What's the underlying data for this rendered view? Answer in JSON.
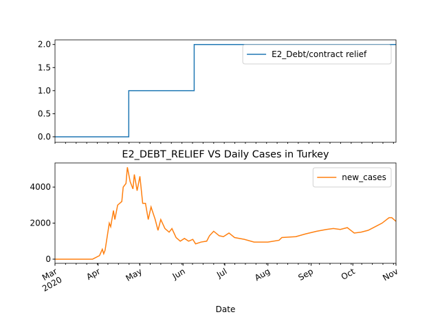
{
  "chart_data": [
    {
      "type": "line",
      "xlabel": null,
      "series": [
        {
          "name": "E2_Debt/contract relief",
          "color": "#1f77b4",
          "x": [
            0,
            53,
            53,
            100,
            100,
            245
          ],
          "values": [
            0,
            0,
            1,
            1,
            2,
            2
          ]
        }
      ],
      "xlim": [
        0,
        245
      ],
      "ylim": [
        -0.12,
        2.1
      ],
      "yticks": [
        {
          "value": 0,
          "label": "0.0"
        },
        0.5,
        {
          "value": 1,
          "label": "1.0"
        },
        1.5,
        {
          "value": 2,
          "label": "2.0"
        }
      ],
      "legend": "upper right"
    },
    {
      "type": "line",
      "title": "E2_DEBT_RELIEF VS Daily Cases in Turkey",
      "xlabel": "Date",
      "series": [
        {
          "name": "new_cases",
          "color": "#ff7f0e",
          "x": [
            0,
            27,
            32,
            34,
            35,
            36,
            37,
            39,
            40,
            42,
            43,
            45,
            48,
            49,
            51,
            52,
            54,
            56,
            57,
            59,
            61,
            63,
            65,
            67,
            69,
            72,
            74,
            76,
            79,
            82,
            84,
            87,
            90,
            93,
            96,
            99,
            101,
            105,
            109,
            111,
            114,
            118,
            121,
            125,
            129,
            136,
            143,
            153,
            161,
            163,
            173,
            180,
            188,
            195,
            200,
            205,
            210,
            215,
            220,
            225,
            230,
            235,
            240,
            242,
            245
          ],
          "values": [
            0,
            0,
            200,
            550,
            300,
            500,
            1000,
            2000,
            1800,
            2700,
            2200,
            3000,
            3200,
            4000,
            4200,
            5100,
            4300,
            3900,
            4700,
            3800,
            4600,
            3100,
            3100,
            2200,
            2900,
            2200,
            1600,
            2200,
            1700,
            1500,
            1700,
            1200,
            1000,
            1150,
            1000,
            1100,
            850,
            950,
            1000,
            1300,
            1550,
            1300,
            1250,
            1450,
            1200,
            1100,
            950,
            950,
            1050,
            1200,
            1250,
            1400,
            1550,
            1650,
            1700,
            1650,
            1750,
            1450,
            1500,
            1600,
            1800,
            2000,
            2300,
            2300,
            2100
          ]
        }
      ],
      "xlim": [
        0,
        245
      ],
      "ylim": [
        -230,
        5340
      ],
      "xticks": [
        {
          "value": 0,
          "label": "Mar 2020"
        },
        {
          "value": 31,
          "label": "Apr"
        },
        {
          "value": 61,
          "label": "May"
        },
        {
          "value": 92,
          "label": "Jun"
        },
        {
          "value": 122,
          "label": "Jul"
        },
        {
          "value": 153,
          "label": "Aug"
        },
        {
          "value": 184,
          "label": "Sep"
        },
        {
          "value": 214,
          "label": "Oct"
        },
        {
          "value": 245,
          "label": "Nov"
        }
      ],
      "yticks": [
        0,
        2000,
        4000
      ],
      "legend": "upper right"
    }
  ]
}
